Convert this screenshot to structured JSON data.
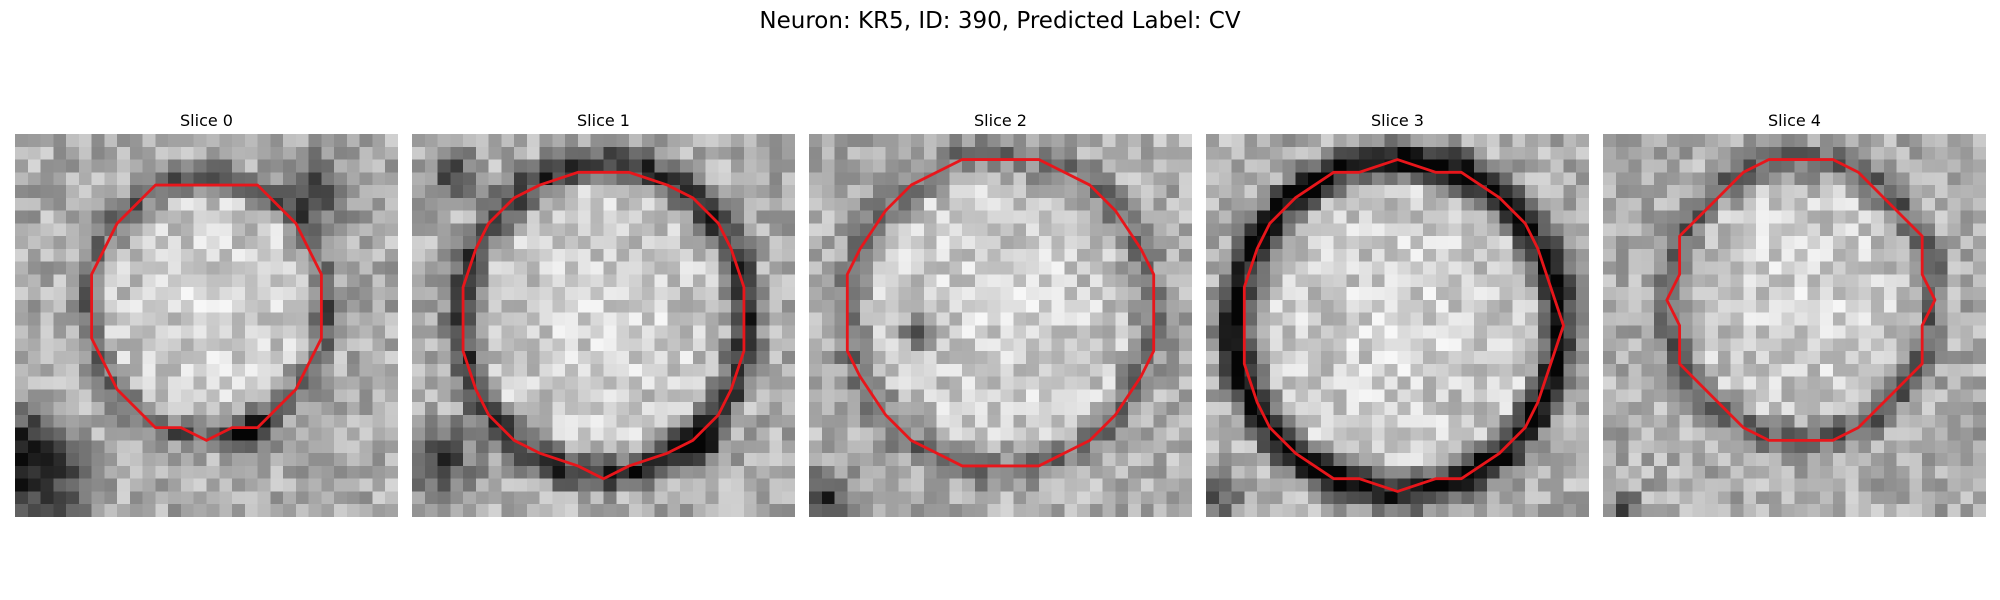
{
  "figure": {
    "title": "Neuron: KR5, ID: 390, Predicted Label: CV"
  },
  "colors": {
    "contour": "#e8161b",
    "background": "#ffffff"
  },
  "panels": [
    {
      "label": "Slice 0"
    },
    {
      "label": "Slice 1"
    },
    {
      "label": "Slice 2"
    },
    {
      "label": "Slice 3"
    },
    {
      "label": "Slice 4"
    }
  ]
}
